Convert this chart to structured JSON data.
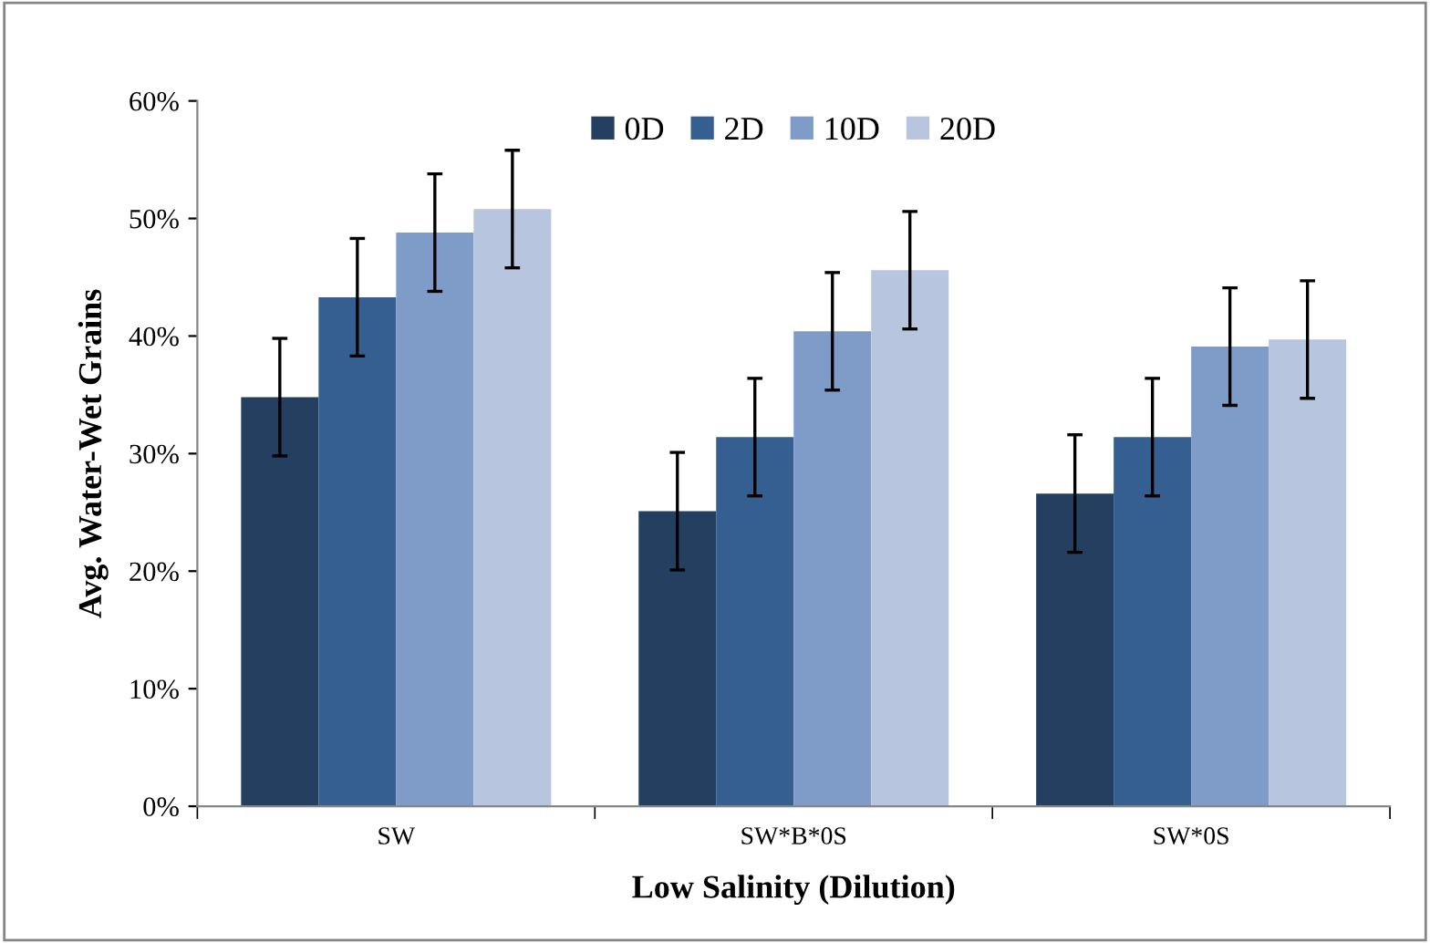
{
  "chart_data": {
    "type": "bar",
    "xlabel": "Low Salinity (Dilution)",
    "ylabel": "Avg. Water-Wet Grains",
    "categories": [
      "SW",
      "SW*B*0S",
      "SW*0S"
    ],
    "series": [
      {
        "name": "0D",
        "color": "#253f60",
        "values": [
          34.8,
          25.1,
          26.6
        ],
        "errors": [
          5,
          5,
          5
        ]
      },
      {
        "name": "2D",
        "color": "#355e91",
        "values": [
          43.3,
          31.4,
          31.4
        ],
        "errors": [
          5,
          5,
          5
        ]
      },
      {
        "name": "10D",
        "color": "#7f9cc8",
        "values": [
          48.8,
          40.4,
          39.1
        ],
        "errors": [
          5,
          5,
          5
        ]
      },
      {
        "name": "20D",
        "color": "#b8c5de",
        "values": [
          50.8,
          45.6,
          39.7
        ],
        "errors": [
          5,
          5,
          5
        ]
      }
    ],
    "ylim": [
      0,
      60
    ],
    "yticks": [
      {
        "value": 0,
        "label": "0%"
      },
      {
        "value": 10,
        "label": "10%"
      },
      {
        "value": 20,
        "label": "20%"
      },
      {
        "value": 30,
        "label": "30%"
      },
      {
        "value": 40,
        "label": "40%"
      },
      {
        "value": 50,
        "label": "50%"
      },
      {
        "value": 60,
        "label": "60%"
      }
    ],
    "grid": false,
    "legend": "top"
  }
}
